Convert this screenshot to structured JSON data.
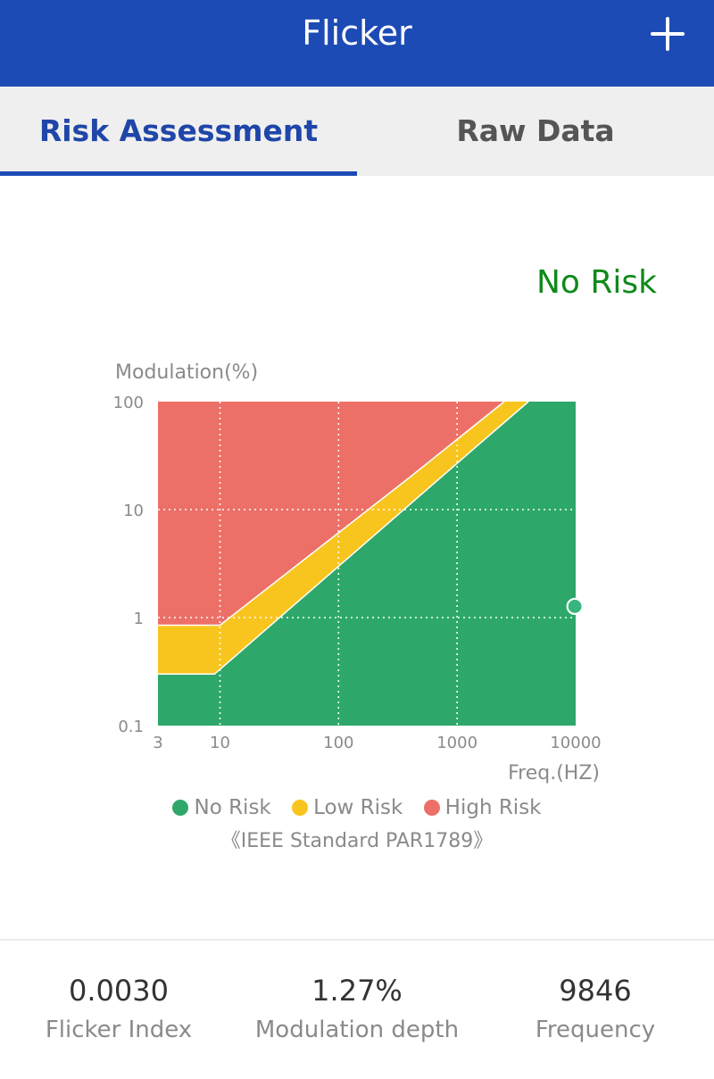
{
  "app_bar": {
    "title": "Flicker",
    "add_icon": "plus-icon"
  },
  "tabs": [
    {
      "label": "Risk Assessment",
      "selected": true
    },
    {
      "label": "Raw Data",
      "selected": false
    }
  ],
  "risk_status": "No Risk",
  "colors": {
    "primary": "#1d4bb5",
    "no_risk": "#2da86a",
    "low_risk": "#f8c51f",
    "high_risk": "#ec7067",
    "status_text": "#0f8a1a"
  },
  "chart_data": {
    "type": "area",
    "ylabel": "Modulation(%)",
    "xlabel": "Freq.(HZ)",
    "x_scale": "log",
    "y_scale": "log",
    "xlim": [
      3,
      10000
    ],
    "ylim": [
      0.1,
      100
    ],
    "x_ticks": [
      3,
      10,
      100,
      1000,
      10000
    ],
    "y_ticks": [
      0.1,
      1,
      10,
      100
    ],
    "grid": true,
    "regions": [
      {
        "name": "High Risk",
        "color": "#ec7067",
        "boundary_below": [
          [
            3,
            0.85
          ],
          [
            10,
            0.85
          ],
          [
            400,
            20
          ],
          [
            2500,
            100
          ]
        ]
      },
      {
        "name": "Low Risk",
        "color": "#f8c51f",
        "boundary_below": [
          [
            3,
            0.3
          ],
          [
            9,
            0.3
          ],
          [
            1400,
            37
          ],
          [
            4000,
            100
          ]
        ]
      },
      {
        "name": "No Risk",
        "color": "#2da86a",
        "boundary_below": [
          [
            3,
            0.1
          ],
          [
            10000,
            0.1
          ]
        ]
      }
    ],
    "measurement": {
      "frequency_hz": 9846,
      "modulation_percent": 1.27
    },
    "legend": [
      "No Risk",
      "Low Risk",
      "High Risk"
    ]
  },
  "legend_items": [
    {
      "label": "No Risk",
      "color": "#2da86a"
    },
    {
      "label": "Low Risk",
      "color": "#f8c51f"
    },
    {
      "label": "High Risk",
      "color": "#ec7067"
    }
  ],
  "standard_note": "《IEEE Standard PAR1789》",
  "stats": [
    {
      "value": "0.0030",
      "label": "Flicker Index"
    },
    {
      "value": "1.27%",
      "label": "Modulation depth"
    },
    {
      "value": "9846",
      "label": "Frequency"
    }
  ]
}
